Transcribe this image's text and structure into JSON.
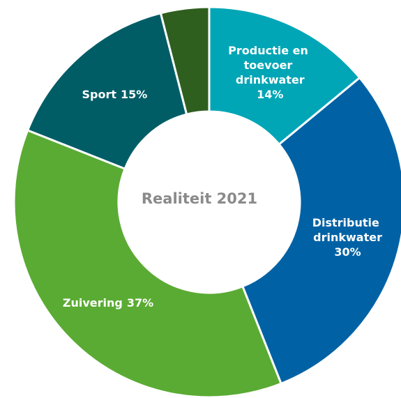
{
  "chart_data": {
    "type": "donut",
    "title": "Realiteit 2021",
    "categories": [
      "Productie en toevoer drinkwater",
      "Distributie drinkwater",
      "Zuivering",
      "Sport",
      null
    ],
    "values": [
      14,
      30,
      37,
      15,
      4
    ],
    "value_labels": [
      "14%",
      "30%",
      "37%",
      "15%",
      null
    ],
    "colors": [
      "#00a6b6",
      "#0062a5",
      "#5aab33",
      "#005d66",
      "#2f5f1f"
    ]
  }
}
